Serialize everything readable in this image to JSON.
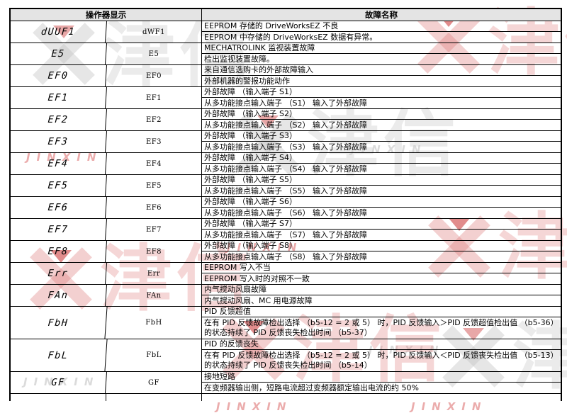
{
  "table": {
    "header": {
      "operator_display": "操作器显示",
      "fault_name": "故障名称"
    },
    "rows": [
      {
        "display": "dUUF1",
        "code": "dWF1",
        "name": "EEPROM 存储的 DriveWorksEZ 不良",
        "desc": "EEPROM 中存储的 DriveWorksEZ 数据有异常。",
        "tall": false
      },
      {
        "display": "E5",
        "code": "E5",
        "name": "MECHATROLINK 监视装置故障",
        "desc": "检出监视装置故障。",
        "tall": false
      },
      {
        "display": "EF0",
        "code": "EF0",
        "name": "来自通信选购卡的外部故障输入",
        "desc": "外部机器的警报功能动作",
        "tall": false
      },
      {
        "display": "EF1",
        "code": "EF1",
        "name": "外部故障 （输入端子 S1）",
        "desc": "从多功能接点输入端子 （S1） 输入了外部故障",
        "tall": false
      },
      {
        "display": "EF2",
        "code": "EF2",
        "name": "外部故障 （输入端子 S2）",
        "desc": "从多功能接点输入端子 （S2） 输入了外部故障",
        "tall": false
      },
      {
        "display": "EF3",
        "code": "EF3",
        "name": "外部故障 （输入端子 S3）",
        "desc": "从多功能接点输入端子 （S3） 输入了外部故障",
        "tall": false
      },
      {
        "display": "EF4",
        "code": "EF4",
        "name": "外部故障 （输入端子 S4）",
        "desc": "从多功能接点输入端子 （S4） 输入了外部故障",
        "tall": false
      },
      {
        "display": "EF5",
        "code": "EF5",
        "name": "外部故障 （输入端子 S5）",
        "desc": "从多功能接点输入端子 （S5） 输入了外部故障",
        "tall": false
      },
      {
        "display": "EF6",
        "code": "EF6",
        "name": "外部故障 （输入端子 S6）",
        "desc": "从多功能接点输入端子 （S6） 输入了外部故障",
        "tall": false
      },
      {
        "display": "EF7",
        "code": "EF7",
        "name": "外部故障 （输入端子 S7）",
        "desc": "从多功能接点输入端子 （S7） 输入了外部故障",
        "tall": false
      },
      {
        "display": "EF8",
        "code": "EF8",
        "name": "外部故障 （输入端子 S8）",
        "desc": "从多功能接点输入端子 （S8） 输入了外部故障",
        "tall": false
      },
      {
        "display": "Err",
        "code": "Err",
        "name": "EEPROM 写入不当",
        "desc": "EEPROM 写入时的对照不一致",
        "tall": false
      },
      {
        "display": "FAn",
        "code": "FAn",
        "name": "内气搅动风扇故障",
        "desc": "内气搅动风扇、MC 用电源故障",
        "tall": false
      },
      {
        "display": "FbH",
        "code": "FbH",
        "name": "PID 反馈超值",
        "desc": "在有 PID 反馈故障检出选择 （b5-12 = 2 或 5） 时，PID 反馈输入＞PID 反馈超值检出值 （b5-36） 的状态持续了 PID 反馈丧失检出时间 （b5-37）",
        "tall": true
      },
      {
        "display": "FbL",
        "code": "FbL",
        "name": "PID 的反馈丧失",
        "desc": "在有 PID 反馈故障检出选择 （b5-12 = 2 或 5） 时，PID 反馈输入＜PID 反馈丧失检出值 （b5-13） 的状态持续了 PID 反馈丧失检出时间 （b5-14）",
        "tall": true
      },
      {
        "display": "GF",
        "code": "GF",
        "name": "接地短路",
        "desc": "在变频器输出侧，短路电流超过变频器额定输出电流的约 50%",
        "tall": false
      }
    ]
  },
  "watermark": {
    "brand_cn": "津信",
    "brand_en": "JINXIN",
    "color_red": "#cc3333",
    "color_gray": "#d8d8d8"
  }
}
